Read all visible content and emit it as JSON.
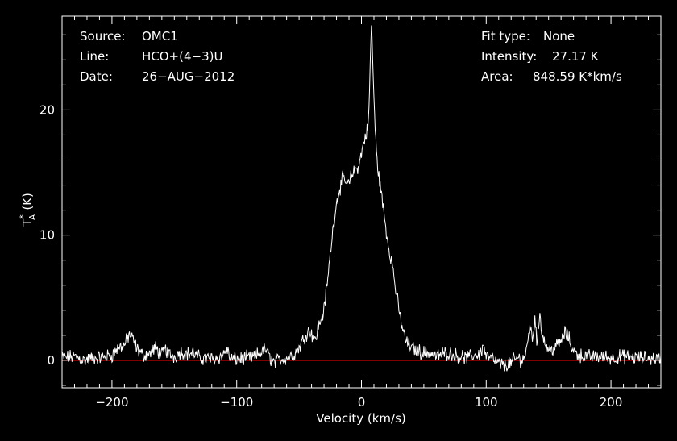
{
  "header": {
    "source_label": "Source:",
    "source_value": "OMC1",
    "line_label": "Line:",
    "line_value": "HCO+(4−3)U",
    "date_label": "Date:",
    "date_value": "26−AUG−2012",
    "fit_label": "Fit type:",
    "fit_value": "None",
    "intensity_label": "Intensity:",
    "intensity_value": "27.17 K",
    "area_label": "Area:",
    "area_value": "848.59 K*km/s"
  },
  "chart_data": {
    "type": "line",
    "title": "",
    "xlabel": "Velocity (km/s)",
    "ylabel_main": "T",
    "ylabel_sup": "*",
    "ylabel_sub": "A",
    "ylabel_unit": "(K)",
    "xlim": [
      -240,
      240
    ],
    "ylim": [
      -2.2,
      27.5
    ],
    "xticks": [
      -200,
      -100,
      0,
      100,
      200
    ],
    "xtick_labels": [
      "−200",
      "−100",
      "0",
      "100",
      "200"
    ],
    "yticks": [
      0,
      10,
      20
    ],
    "ytick_labels": [
      "0",
      "10",
      "20"
    ],
    "baseline_value": 0,
    "colors": {
      "background": "#000000",
      "spectrum": "#ffffff",
      "baseline": "#ff0000",
      "axes": "#ffffff"
    },
    "series": [
      {
        "x": [
          -240,
          -230,
          -222,
          -215,
          -210,
          -200,
          -195,
          -190,
          -186,
          -183,
          -180,
          -175,
          -170,
          -165,
          -160,
          -157,
          -155,
          -150,
          -145,
          -140,
          -135,
          -130,
          -120,
          -112,
          -108,
          -105,
          -100,
          -90,
          -85,
          -80,
          -77,
          -74,
          -70,
          -65,
          -60,
          -55,
          -50,
          -45,
          -42,
          -40,
          -37,
          -35,
          -30,
          -27,
          -24,
          -21,
          -18,
          -15,
          -12,
          -10,
          -8,
          -5,
          -2,
          0,
          2,
          5,
          6,
          7,
          8,
          9,
          10,
          11,
          12,
          13,
          15,
          17,
          19,
          21,
          23,
          25,
          27,
          30,
          33,
          36,
          40,
          45,
          50,
          55,
          60,
          65,
          70,
          75,
          80,
          85,
          90,
          95,
          98,
          100,
          105,
          110,
          115,
          120,
          125,
          128,
          131,
          133,
          135,
          137,
          139,
          141,
          143,
          145,
          148,
          150,
          155,
          160,
          163,
          166,
          170,
          175,
          180,
          190,
          200,
          210,
          220,
          230,
          240
        ],
        "y": [
          0.2,
          0.3,
          0.0,
          0.2,
          0.2,
          0.4,
          1.0,
          1.2,
          2.1,
          1.6,
          0.9,
          0.4,
          0.5,
          1.0,
          0.4,
          0.9,
          0.5,
          0.3,
          0.7,
          0.5,
          0.6,
          0.2,
          0.1,
          0.3,
          0.9,
          0.1,
          0.1,
          0.2,
          0.3,
          0.7,
          0.9,
          0.3,
          -0.2,
          0.1,
          0.2,
          0.4,
          1.0,
          2.0,
          2.4,
          2.2,
          1.5,
          2.5,
          4.0,
          6.5,
          9.5,
          12.0,
          13.5,
          14.5,
          14.2,
          14.0,
          14.8,
          15.2,
          15.6,
          16.5,
          17.5,
          18.5,
          20.0,
          23.5,
          27.0,
          24.0,
          21.0,
          18.5,
          16.5,
          15.5,
          14.0,
          12.5,
          11.0,
          9.5,
          8.5,
          7.5,
          6.0,
          4.0,
          2.5,
          1.5,
          1.0,
          0.8,
          0.6,
          0.6,
          0.3,
          0.5,
          0.6,
          0.4,
          0.3,
          0.2,
          0.4,
          0.5,
          1.2,
          0.3,
          0.1,
          -0.3,
          -0.4,
          -0.2,
          0.2,
          0.0,
          0.3,
          1.2,
          3.0,
          1.5,
          3.5,
          1.2,
          3.9,
          2.0,
          1.2,
          0.8,
          1.0,
          1.5,
          2.2,
          1.8,
          0.7,
          0.4,
          0.3,
          0.3,
          0.2,
          0.3,
          0.2,
          0.2,
          0.1
        ]
      }
    ]
  }
}
